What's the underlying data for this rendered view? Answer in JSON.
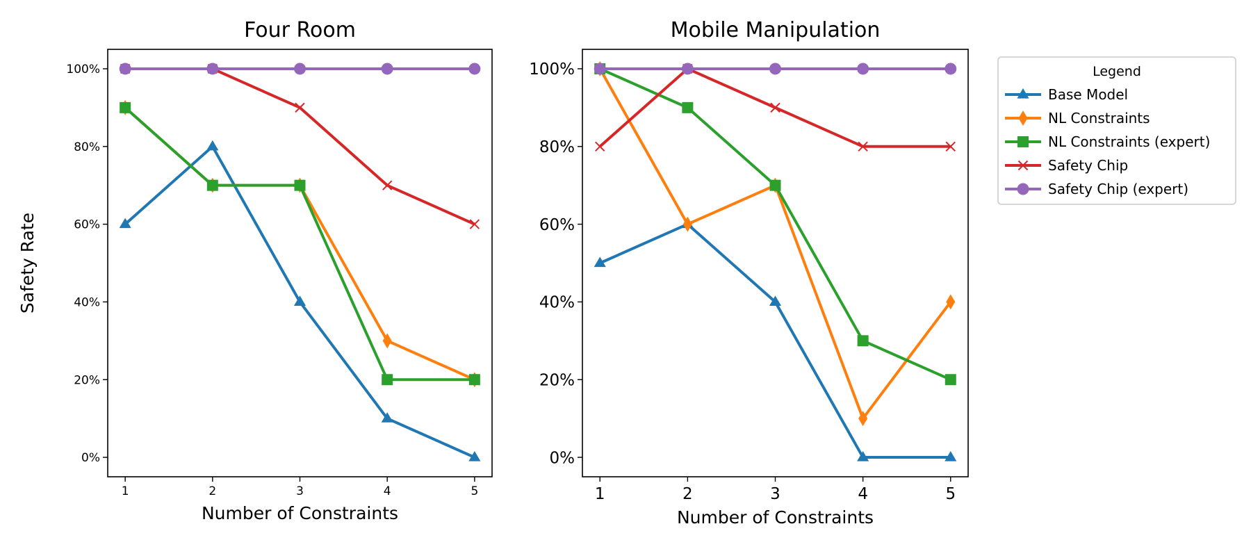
{
  "legend": {
    "title": "Legend",
    "placement": "outside-right",
    "entries": [
      "Base Model",
      "NL Constraints",
      "NL Constraints (expert)",
      "Safety Chip",
      "Safety Chip (expert)"
    ]
  },
  "series_styles": [
    {
      "name": "Base Model",
      "color": "#1f77b4",
      "marker": "triangle-up"
    },
    {
      "name": "NL Constraints",
      "color": "#ff7f0e",
      "marker": "thin-diamond"
    },
    {
      "name": "NL Constraints (expert)",
      "color": "#2ca02c",
      "marker": "square"
    },
    {
      "name": "Safety Chip",
      "color": "#d62728",
      "marker": "x"
    },
    {
      "name": "Safety Chip (expert)",
      "color": "#9467bd",
      "marker": "circle"
    }
  ],
  "chart_data": [
    {
      "type": "line",
      "title": "Four Room",
      "xlabel": "Number of Constraints",
      "ylabel": "Safety Rate",
      "x": [
        1,
        2,
        3,
        4,
        5
      ],
      "ylim": [
        -5,
        105
      ],
      "yticks": [
        0,
        20,
        40,
        60,
        80,
        100
      ],
      "ytick_labels": [
        "0%",
        "20%",
        "40%",
        "60%",
        "80%",
        "100%"
      ],
      "xtick_labels": [
        "1",
        "2",
        "3",
        "4",
        "5"
      ],
      "grid": false,
      "series": [
        {
          "name": "Base Model",
          "values": [
            60,
            80,
            40,
            10,
            0
          ]
        },
        {
          "name": "NL Constraints",
          "values": [
            90,
            70,
            70,
            30,
            20
          ]
        },
        {
          "name": "NL Constraints (expert)",
          "values": [
            90,
            70,
            70,
            20,
            20
          ]
        },
        {
          "name": "Safety Chip",
          "values": [
            100,
            100,
            90,
            70,
            60
          ]
        },
        {
          "name": "Safety Chip (expert)",
          "values": [
            100,
            100,
            100,
            100,
            100
          ]
        }
      ]
    },
    {
      "type": "line",
      "title": "Mobile Manipulation",
      "xlabel": "Number of Constraints",
      "ylabel": "",
      "x": [
        1,
        2,
        3,
        4,
        5
      ],
      "ylim": [
        -5,
        105
      ],
      "yticks": [
        0,
        20,
        40,
        60,
        80,
        100
      ],
      "ytick_labels": [
        "0%",
        "20%",
        "40%",
        "60%",
        "80%",
        "100%"
      ],
      "xtick_labels": [
        "1",
        "2",
        "3",
        "4",
        "5"
      ],
      "grid": false,
      "series": [
        {
          "name": "Base Model",
          "values": [
            50,
            60,
            40,
            0,
            0
          ]
        },
        {
          "name": "NL Constraints",
          "values": [
            100,
            60,
            70,
            10,
            40
          ]
        },
        {
          "name": "NL Constraints (expert)",
          "values": [
            100,
            90,
            70,
            30,
            20
          ]
        },
        {
          "name": "Safety Chip",
          "values": [
            80,
            100,
            90,
            80,
            80
          ]
        },
        {
          "name": "Safety Chip (expert)",
          "values": [
            100,
            100,
            100,
            100,
            100
          ]
        }
      ]
    }
  ]
}
